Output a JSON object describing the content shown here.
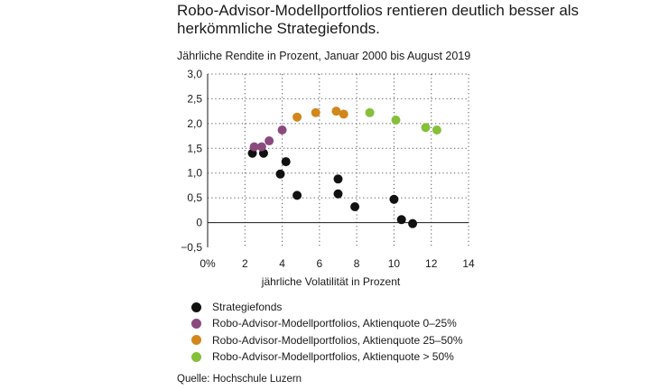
{
  "title": "Robo-Advisor-Modellportfolios rentieren deutlich besser als herkömmliche Strategiefonds.",
  "subtitle": "Jährliche Rendite in Prozent,  Januar 2000 bis August 2019",
  "source": "Quelle: Hochschule Luzern",
  "chart_data": {
    "type": "scatter",
    "title": "",
    "xlabel": "jährliche Volatilität in Prozent",
    "ylabel": "",
    "xlim": [
      0,
      14
    ],
    "ylim": [
      -0.5,
      3.0
    ],
    "x_ticks": [
      0,
      2,
      4,
      6,
      8,
      10,
      12,
      14
    ],
    "x_tick_labels": [
      "0%",
      "2",
      "4",
      "6",
      "8",
      "10",
      "12",
      "14"
    ],
    "y_ticks": [
      3.0,
      2.5,
      2.0,
      1.5,
      1.0,
      0.5,
      0,
      -0.5
    ],
    "y_tick_labels": [
      "3,0",
      "2,5",
      "2,0",
      "1,5",
      "1,0",
      "0,5",
      "0",
      "−0,5"
    ],
    "grid": "dotted",
    "legend_position": "bottom",
    "series": [
      {
        "name": "Strategiefonds",
        "color": "#111111",
        "points": [
          {
            "x": 2.4,
            "y": 1.4
          },
          {
            "x": 3.0,
            "y": 1.4
          },
          {
            "x": 3.9,
            "y": 0.98
          },
          {
            "x": 4.2,
            "y": 1.23
          },
          {
            "x": 4.8,
            "y": 0.55
          },
          {
            "x": 7.0,
            "y": 0.88
          },
          {
            "x": 7.0,
            "y": 0.58
          },
          {
            "x": 7.9,
            "y": 0.32
          },
          {
            "x": 10.0,
            "y": 0.47
          },
          {
            "x": 10.4,
            "y": 0.06
          },
          {
            "x": 11.0,
            "y": -0.02
          }
        ]
      },
      {
        "name": "Robo-Advisor-Modellportfolios, Aktienquote 0–25%",
        "color": "#8a4a7d",
        "points": [
          {
            "x": 2.5,
            "y": 1.53
          },
          {
            "x": 2.9,
            "y": 1.53
          },
          {
            "x": 3.3,
            "y": 1.65
          },
          {
            "x": 4.0,
            "y": 1.87
          }
        ]
      },
      {
        "name": "Robo-Advisor-Modellportfolios, Aktienquote 25–50%",
        "color": "#d2861c",
        "points": [
          {
            "x": 4.8,
            "y": 2.13
          },
          {
            "x": 5.8,
            "y": 2.22
          },
          {
            "x": 6.9,
            "y": 2.25
          },
          {
            "x": 7.3,
            "y": 2.19
          }
        ]
      },
      {
        "name": "Robo-Advisor-Modellportfolios, Aktienquote > 50%",
        "color": "#86bf3a",
        "points": [
          {
            "x": 8.7,
            "y": 2.22
          },
          {
            "x": 10.1,
            "y": 2.07
          },
          {
            "x": 11.7,
            "y": 1.92
          },
          {
            "x": 12.3,
            "y": 1.87
          }
        ]
      }
    ]
  }
}
